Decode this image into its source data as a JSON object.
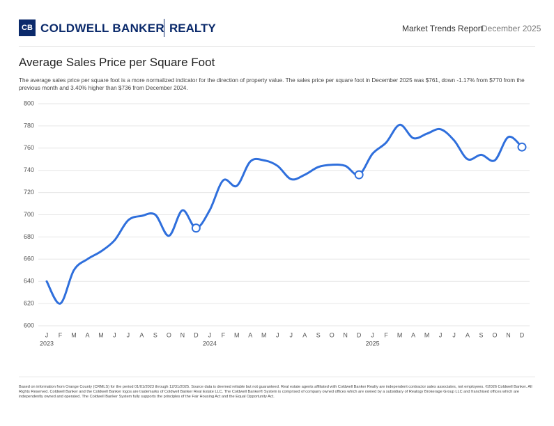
{
  "header": {
    "logo_mark": "CB",
    "brand": "COLDWELL BANKER",
    "brand_suffix": "REALTY",
    "report": "Market Trends Report",
    "date": "December 2025"
  },
  "chart_data": {
    "type": "line",
    "title": "Average Sales Price per Square Foot",
    "subtitle": "The average sales price per square foot is a more normalized indicator for the direction of property value. The sales price per square foot in December 2025 was $761, down -1.17% from $770 from the previous month and 3.40% higher than $736 from December 2024.",
    "categories": [
      "J",
      "F",
      "M",
      "A",
      "M",
      "J",
      "J",
      "A",
      "S",
      "O",
      "N",
      "D",
      "J",
      "F",
      "M",
      "A",
      "M",
      "J",
      "J",
      "A",
      "S",
      "O",
      "N",
      "D",
      "J",
      "F",
      "M",
      "A",
      "M",
      "J",
      "J",
      "A",
      "S",
      "O",
      "N",
      "D"
    ],
    "years": [
      "2023",
      "2024",
      "2025"
    ],
    "series": [
      {
        "name": "Average Sales Price per Square Foot",
        "color": "#2f6fdc",
        "values": [
          640,
          620,
          650,
          660,
          667,
          677,
          695,
          699,
          700,
          681,
          704,
          688,
          704,
          731,
          726,
          748,
          749,
          744,
          732,
          736,
          743,
          745,
          744,
          736,
          755,
          765,
          781,
          769,
          773,
          777,
          767,
          750,
          754,
          749,
          770,
          761
        ]
      }
    ],
    "marker_points": [
      11,
      23,
      35
    ],
    "ylim": [
      600,
      800
    ],
    "yticks": [
      600,
      620,
      640,
      660,
      680,
      700,
      720,
      740,
      760,
      780,
      800
    ],
    "grid": true
  },
  "footer": "Based on information from Orange County (CRMLS) for the period 01/01/2023 through 12/31/2025. Source data is deemed reliable but not guaranteed. Real estate agents affiliated with Coldwell Banker Realty are independent contractor sales associates, not employees. ©2026 Coldwell Banker. All Rights Reserved. Coldwell Banker and the Coldwell Banker logos are trademarks of Coldwell Banker Real Estate LLC. The Coldwell Banker® System is comprised of company owned offices which are owned by a subsidiary of Realogy Brokerage Group LLC and franchised offices which are independently owned and operated. The Coldwell Banker System fully supports the principles of the Fair Housing Act and the Equal Opportunity Act."
}
